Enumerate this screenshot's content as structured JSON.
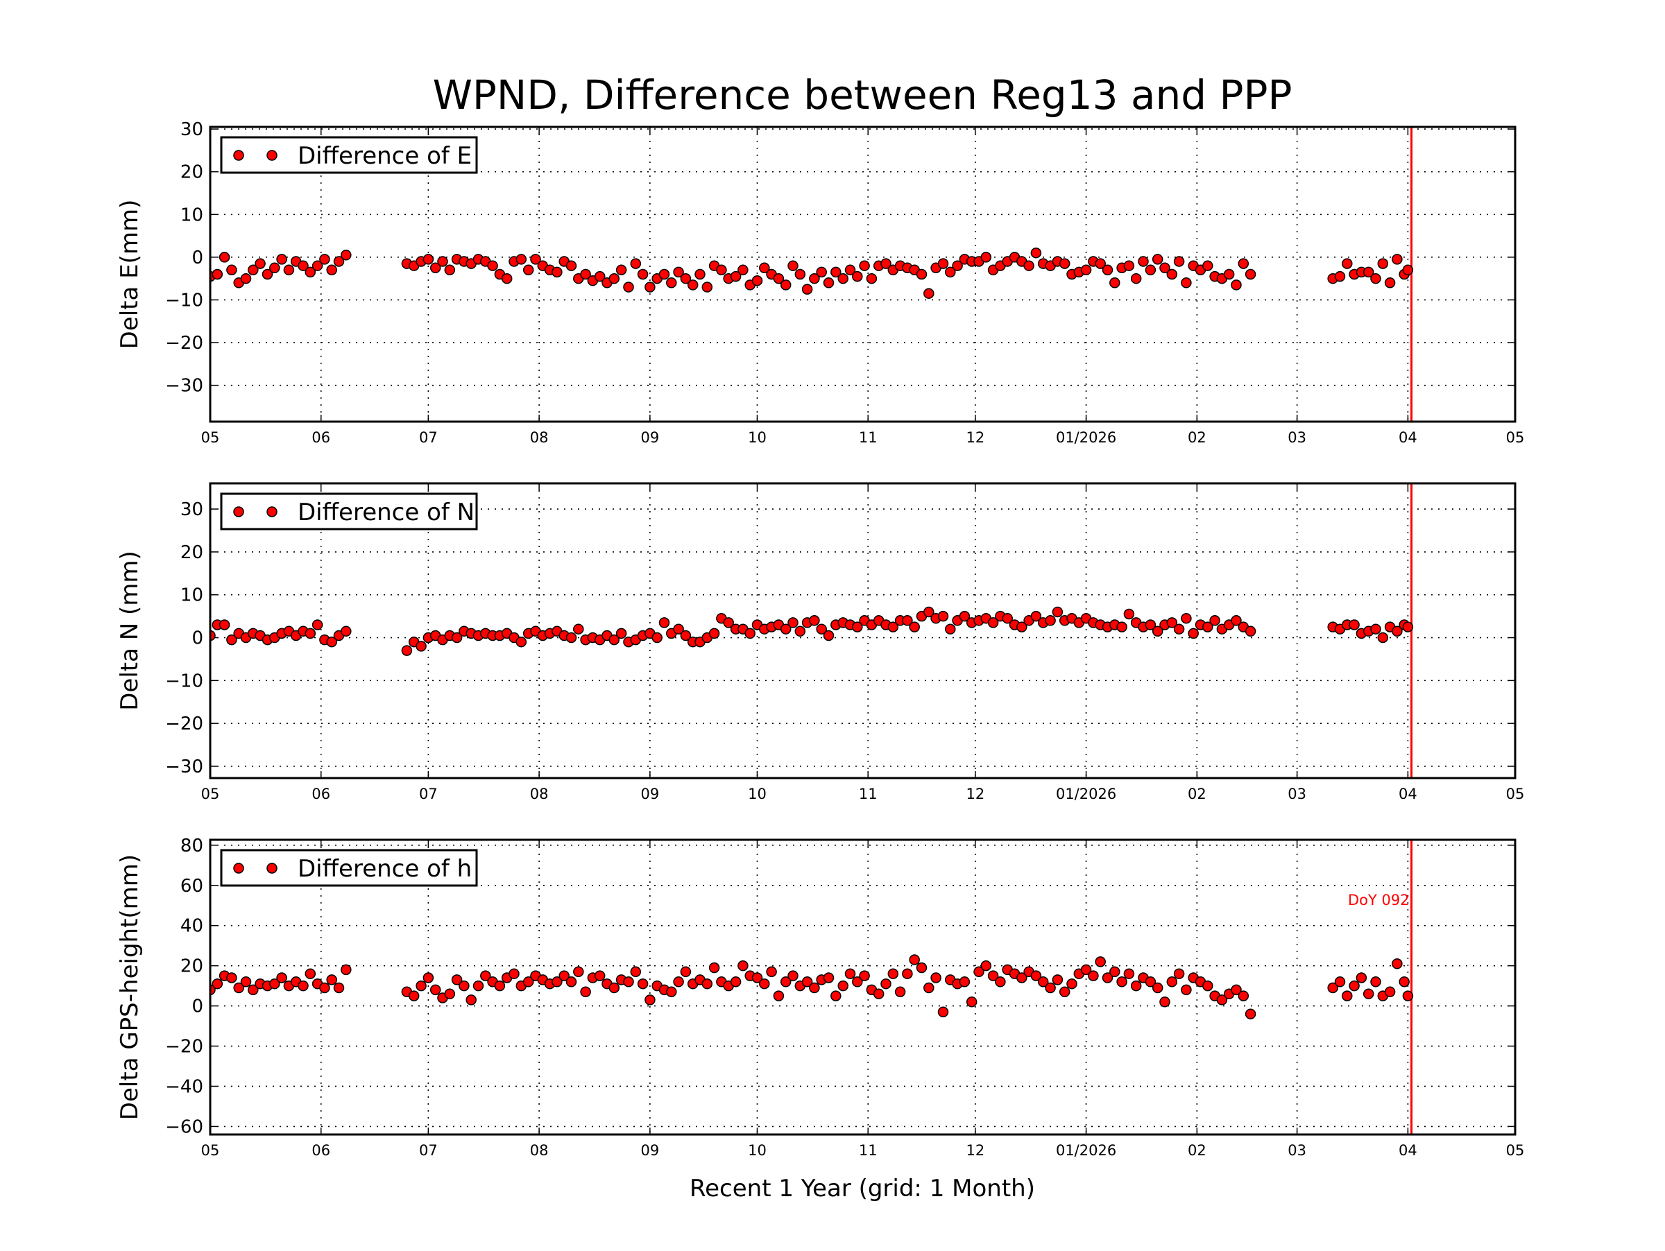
{
  "chart_data": {
    "type": "scatter",
    "title": "WPND, Difference between Reg13 and PPP",
    "xlabel": "Recent 1 Year (grid: 1 Month)",
    "xlim": [
      "2025-05-01",
      "2026-05-01"
    ],
    "xticks": [
      {
        "date": "2025-05-01",
        "label": "05"
      },
      {
        "date": "2025-06-01",
        "label": "06"
      },
      {
        "date": "2025-07-01",
        "label": "07"
      },
      {
        "date": "2025-08-01",
        "label": "08"
      },
      {
        "date": "2025-09-01",
        "label": "09"
      },
      {
        "date": "2025-10-01",
        "label": "10"
      },
      {
        "date": "2025-11-01",
        "label": "11"
      },
      {
        "date": "2025-12-01",
        "label": "12"
      },
      {
        "date": "2026-01-01",
        "label": "01/2026"
      },
      {
        "date": "2026-02-01",
        "label": "02"
      },
      {
        "date": "2026-03-01",
        "label": "03"
      },
      {
        "date": "2026-04-01",
        "label": "04"
      },
      {
        "date": "2026-05-01",
        "label": "05"
      }
    ],
    "grid": true,
    "legend_placement": "upper-left",
    "marker_color": "#ff0000",
    "marker_edge": "#000000",
    "vline": {
      "date": "2026-04-02",
      "color": "#ff0000",
      "label": "DoY 092"
    },
    "x": [
      "2025-05-01",
      "2025-05-03",
      "2025-05-05",
      "2025-05-07",
      "2025-05-09",
      "2025-05-11",
      "2025-05-13",
      "2025-05-15",
      "2025-05-17",
      "2025-05-19",
      "2025-05-21",
      "2025-05-23",
      "2025-05-25",
      "2025-05-27",
      "2025-05-29",
      "2025-05-31",
      "2025-06-02",
      "2025-06-04",
      "2025-06-06",
      "2025-06-08",
      "2025-06-25",
      "2025-06-27",
      "2025-06-29",
      "2025-07-01",
      "2025-07-03",
      "2025-07-05",
      "2025-07-07",
      "2025-07-09",
      "2025-07-11",
      "2025-07-13",
      "2025-07-15",
      "2025-07-17",
      "2025-07-19",
      "2025-07-21",
      "2025-07-23",
      "2025-07-25",
      "2025-07-27",
      "2025-07-29",
      "2025-07-31",
      "2025-08-02",
      "2025-08-04",
      "2025-08-06",
      "2025-08-08",
      "2025-08-10",
      "2025-08-12",
      "2025-08-14",
      "2025-08-16",
      "2025-08-18",
      "2025-08-20",
      "2025-08-22",
      "2025-08-24",
      "2025-08-26",
      "2025-08-28",
      "2025-08-30",
      "2025-09-01",
      "2025-09-03",
      "2025-09-05",
      "2025-09-07",
      "2025-09-09",
      "2025-09-11",
      "2025-09-13",
      "2025-09-15",
      "2025-09-17",
      "2025-09-19",
      "2025-09-21",
      "2025-09-23",
      "2025-09-25",
      "2025-09-27",
      "2025-09-29",
      "2025-10-01",
      "2025-10-03",
      "2025-10-05",
      "2025-10-07",
      "2025-10-09",
      "2025-10-11",
      "2025-10-13",
      "2025-10-15",
      "2025-10-17",
      "2025-10-19",
      "2025-10-21",
      "2025-10-23",
      "2025-10-25",
      "2025-10-27",
      "2025-10-29",
      "2025-10-31",
      "2025-11-02",
      "2025-11-04",
      "2025-11-06",
      "2025-11-08",
      "2025-11-10",
      "2025-11-12",
      "2025-11-14",
      "2025-11-16",
      "2025-11-18",
      "2025-11-20",
      "2025-11-22",
      "2025-11-24",
      "2025-11-26",
      "2025-11-28",
      "2025-11-30",
      "2025-12-02",
      "2025-12-04",
      "2025-12-06",
      "2025-12-08",
      "2025-12-10",
      "2025-12-12",
      "2025-12-14",
      "2025-12-16",
      "2025-12-18",
      "2025-12-20",
      "2025-12-22",
      "2025-12-24",
      "2025-12-26",
      "2025-12-28",
      "2025-12-30",
      "2026-01-01",
      "2026-01-03",
      "2026-01-05",
      "2026-01-07",
      "2026-01-09",
      "2026-01-11",
      "2026-01-13",
      "2026-01-15",
      "2026-01-17",
      "2026-01-19",
      "2026-01-21",
      "2026-01-23",
      "2026-01-25",
      "2026-01-27",
      "2026-01-29",
      "2026-01-31",
      "2026-02-02",
      "2026-02-04",
      "2026-02-06",
      "2026-02-08",
      "2026-02-10",
      "2026-02-12",
      "2026-02-14",
      "2026-02-16",
      "2026-03-11",
      "2026-03-13",
      "2026-03-15",
      "2026-03-17",
      "2026-03-19",
      "2026-03-21",
      "2026-03-23",
      "2026-03-25",
      "2026-03-27",
      "2026-03-29",
      "2026-03-31",
      "2026-04-01"
    ],
    "panels": [
      {
        "ylabel": "Delta E(mm)",
        "ylim": [
          -38.5,
          30.5
        ],
        "yticks": [
          -30,
          -20,
          -10,
          0,
          10,
          20,
          30
        ],
        "series": [
          {
            "name": "Difference of E",
            "values": [
              -4.5,
              -4,
              0,
              -3,
              -6,
              -5,
              -3,
              -1.5,
              -4,
              -2.5,
              -0.5,
              -3,
              -1,
              -2,
              -3.5,
              -2,
              -0.5,
              -3,
              -1,
              0.5,
              -1.5,
              -2,
              -1,
              -0.5,
              -2.5,
              -1,
              -3,
              -0.5,
              -1,
              -1.5,
              -0.5,
              -1,
              -2,
              -4,
              -5,
              -1,
              -0.5,
              -3,
              -0.5,
              -2,
              -3,
              -3.5,
              -1,
              -2,
              -5,
              -4,
              -5.5,
              -4.5,
              -6,
              -5,
              -3,
              -7,
              -1.5,
              -4,
              -7,
              -5,
              -4,
              -6,
              -3.5,
              -5,
              -6.5,
              -4,
              -7,
              -2,
              -3,
              -5,
              -4.5,
              -3,
              -6.5,
              -5.5,
              -2.5,
              -4,
              -5,
              -6.5,
              -2,
              -4,
              -7.5,
              -5,
              -3.5,
              -6,
              -3.5,
              -5,
              -3,
              -4.5,
              -2,
              -5,
              -2,
              -1.5,
              -3,
              -2,
              -2.5,
              -3,
              -4,
              -8.5,
              -2.5,
              -1.5,
              -3.5,
              -2,
              -0.5,
              -1,
              -1,
              0,
              -3,
              -2,
              -1,
              0,
              -1,
              -2,
              1,
              -1.5,
              -2,
              -1,
              -1.5,
              -4,
              -3.5,
              -3,
              -1,
              -1.5,
              -3,
              -6,
              -2.5,
              -2,
              -5,
              -1,
              -3,
              -0.5,
              -2.5,
              -4,
              -1,
              -6,
              -2,
              -3,
              -2,
              -4.5,
              -5,
              -4,
              -6.5,
              -1.5,
              -4,
              -5,
              -4.5,
              -1.5,
              -4,
              -3.5,
              -3.5,
              -5,
              -1.5,
              -6,
              -0.5,
              -4,
              -3
            ]
          }
        ]
      },
      {
        "ylabel": "Delta N (mm)",
        "ylim": [
          -32.75,
          36
        ],
        "yticks": [
          -30,
          -20,
          -10,
          0,
          10,
          20,
          30
        ],
        "series": [
          {
            "name": "Difference of N",
            "values": [
              0.5,
              3,
              3,
              -0.5,
              1,
              0,
              1,
              0.5,
              -0.5,
              0,
              1,
              1.5,
              0.5,
              1.5,
              1,
              3,
              -0.5,
              -1,
              0.5,
              1.5,
              -3,
              -1,
              -2,
              0,
              0.5,
              -0.5,
              0.5,
              0,
              1.5,
              1,
              0.5,
              1,
              0.5,
              0.5,
              1,
              0,
              -1,
              1,
              1.5,
              0.5,
              1,
              1.5,
              0.5,
              0,
              2,
              -0.5,
              0,
              -0.5,
              0.5,
              -0.5,
              1,
              -1,
              -0.5,
              0.5,
              1,
              0,
              3.5,
              1,
              2,
              0.5,
              -1,
              -1,
              0,
              1,
              4.5,
              3.5,
              2,
              2,
              1,
              3,
              2,
              2.5,
              3,
              2,
              3.5,
              1.5,
              3.5,
              4,
              2,
              0.5,
              3,
              3.5,
              3,
              2.5,
              4,
              3,
              4,
              3,
              2.5,
              4,
              4,
              2.5,
              5,
              6,
              4.5,
              5,
              2,
              4,
              5,
              3.5,
              4,
              4.5,
              3.5,
              5,
              4.5,
              3,
              2.5,
              4,
              5,
              3.5,
              4,
              6,
              4,
              4.5,
              3.5,
              4.5,
              3.5,
              3,
              2.5,
              3,
              2.5,
              5.5,
              3.5,
              2.5,
              3,
              1.5,
              3,
              3.5,
              2,
              4.5,
              1,
              3,
              2.5,
              4,
              2,
              3,
              4,
              2.5,
              1.5,
              2.5,
              2,
              3,
              3,
              1,
              1.5,
              2,
              0,
              2.5,
              1.5,
              3,
              2.5
            ]
          }
        ]
      },
      {
        "ylabel": "Delta GPS-height(mm)",
        "ylim": [
          -64,
          82.7
        ],
        "yticks": [
          -60,
          -40,
          -20,
          0,
          20,
          40,
          60,
          80
        ],
        "series": [
          {
            "name": "Difference of h",
            "values": [
              8,
              11,
              15,
              14,
              9,
              12,
              8,
              11,
              10,
              11,
              14,
              10,
              12,
              10,
              16,
              11,
              9,
              13,
              9,
              18,
              7,
              5,
              10,
              14,
              8,
              4,
              6,
              13,
              10,
              3,
              10,
              15,
              12,
              10,
              14,
              16,
              10,
              12,
              15,
              13,
              11,
              12,
              15,
              12,
              17,
              7,
              14,
              15,
              11,
              9,
              13,
              12,
              17,
              11,
              3,
              10,
              8,
              7,
              12,
              17,
              11,
              13,
              11,
              19,
              12,
              10,
              12,
              20,
              15,
              14,
              11,
              17,
              5,
              12,
              15,
              10,
              12,
              9,
              13,
              14,
              5,
              10,
              16,
              12,
              15,
              8,
              6,
              11,
              16,
              7,
              16,
              23,
              19,
              9,
              14,
              -3,
              13,
              11,
              12,
              2,
              17,
              20,
              15,
              12,
              18,
              16,
              14,
              17,
              15,
              12,
              9,
              13,
              7,
              11,
              16,
              18,
              15,
              22,
              14,
              17,
              12,
              16,
              10,
              14,
              12,
              9,
              2,
              12,
              16,
              8,
              14,
              12,
              10,
              5,
              3,
              6,
              8,
              5,
              -4,
              9,
              12,
              5,
              10,
              14,
              6,
              12,
              5,
              7,
              21,
              12,
              5
            ]
          }
        ]
      }
    ]
  }
}
